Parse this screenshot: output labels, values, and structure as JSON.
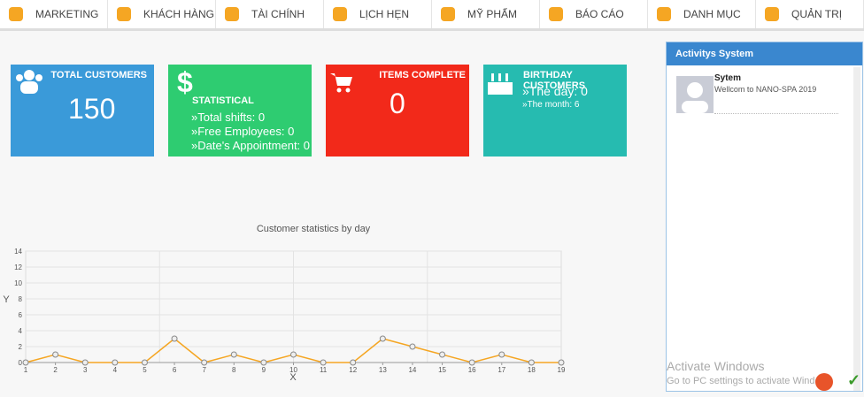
{
  "nav": [
    "MARKETING",
    "KHÁCH HÀNG",
    "TÀI CHÍNH",
    "LỊCH HẸN",
    "MỸ PHẨM",
    "BÁO CÁO",
    "DANH MỤC",
    "QUẢN TRỊ"
  ],
  "cards": [
    {
      "title": "TOTAL CUSTOMERS",
      "value": 150
    },
    {
      "title": "STATISTICAL",
      "lines": [
        "»Total shifts: 0",
        "»Free Employees: 0",
        "»Date's Appointment: 0"
      ]
    },
    {
      "title": "ITEMS COMPLETE",
      "value": 0
    },
    {
      "title": "BIRTHDAY CUSTOMERS",
      "lines": [
        "»The day: 0",
        "»The month: 6"
      ]
    }
  ],
  "panel": {
    "title": "Activitys System",
    "items": [
      {
        "name": "Sytem",
        "message": "Wellcom to NANO-SPA 2019"
      }
    ]
  },
  "watermark": {
    "title": "Activate Windows",
    "subtitle": "Go to PC settings to activate Windows."
  },
  "chart_data": {
    "type": "line",
    "title": "Customer statistics by day",
    "x_label": "X",
    "y_label": "Y",
    "x": [
      1,
      2,
      3,
      4,
      5,
      6,
      7,
      8,
      9,
      10,
      11,
      12,
      13,
      14,
      15,
      16,
      17,
      18,
      19
    ],
    "series": [
      {
        "color": "#f5a623",
        "values": [
          0,
          1,
          0,
          0,
          0,
          3,
          0,
          1,
          0,
          1,
          0,
          0,
          3,
          2,
          1,
          0,
          1,
          0,
          0
        ]
      }
    ],
    "xlim": [
      1,
      19
    ],
    "xticks": [
      1,
      2,
      3,
      4,
      5,
      6,
      7,
      8,
      9,
      10,
      11,
      12,
      13,
      14,
      15,
      16,
      17,
      18,
      19
    ],
    "ylim": [
      0,
      14
    ],
    "yticks": [
      0,
      2,
      4,
      6,
      8,
      10,
      12,
      14
    ],
    "grid": true
  }
}
